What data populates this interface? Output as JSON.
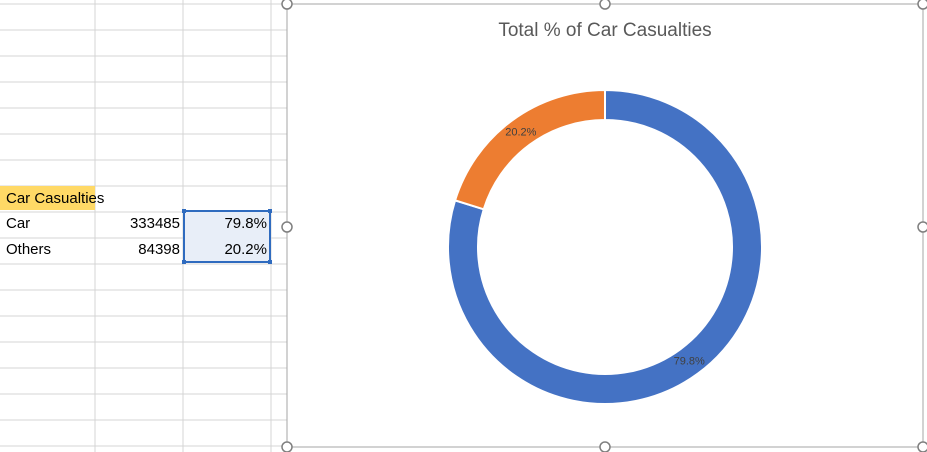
{
  "table": {
    "header": "Car Casualties",
    "rows": [
      [
        "Car",
        333485,
        "79.8%"
      ],
      [
        "Others",
        84398,
        "20.2%"
      ]
    ]
  },
  "chart_data": {
    "type": "donut",
    "title": "Total % of Car Casualties",
    "categories": [
      "Car",
      "Others"
    ],
    "values": [
      79.8,
      20.2
    ],
    "value_labels": [
      "79.8%",
      "20.2%"
    ],
    "colors": [
      "#4472c4",
      "#ed7d31"
    ]
  }
}
